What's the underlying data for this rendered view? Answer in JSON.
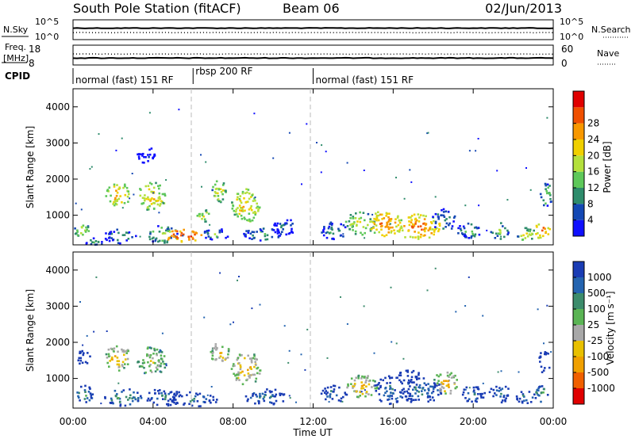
{
  "header": {
    "title": "South Pole Station (fitACF)",
    "beam": "Beam 06",
    "date": "02/Jun/2013"
  },
  "chart_data": [
    {
      "type": "line",
      "panel": "nsky-nsearch",
      "ylabel_left": "N.Sky",
      "ylabel_right": "N.Search",
      "ylim": [
        1,
        100000
      ],
      "log_scale": true,
      "ticks_left": [
        "10^5",
        "10^0"
      ],
      "ticks_right": [
        "10^5",
        "10^0"
      ],
      "series": [
        {
          "name": "N.Sky",
          "style": "solid",
          "values_mean": 800
        },
        {
          "name": "N.Search",
          "style": "dotted",
          "values_mean": 60
        }
      ]
    },
    {
      "type": "line",
      "panel": "freq-nave",
      "ylabel_left": "Freq.\n[MHz]",
      "ylabel_right": "Nave",
      "ylim_left": [
        8,
        18
      ],
      "ylim_right": [
        0,
        60
      ],
      "ticks_left": [
        "18",
        "8"
      ],
      "ticks_right": [
        "60",
        "0"
      ],
      "series": [
        {
          "name": "Freq.",
          "style": "solid",
          "values_mean": 11.5
        },
        {
          "name": "Nave",
          "style": "dotted",
          "values_mean": 33
        }
      ]
    },
    {
      "type": "table",
      "panel": "cpid",
      "label": "CPID",
      "segments": [
        {
          "label": "normal (fast) 151 RF",
          "start": 0,
          "end": 6
        },
        {
          "label": "rbsp 200 RF",
          "start": 6,
          "end": 12
        },
        {
          "label": "normal (fast) 151 RF",
          "start": 12,
          "end": 24
        }
      ]
    },
    {
      "type": "heatmap",
      "panel": "power",
      "ylabel": "Slant Range [km]",
      "xlim": [
        0,
        24
      ],
      "ylim": [
        180,
        4500
      ],
      "yticks": [
        "1000",
        "2000",
        "3000",
        "4000"
      ],
      "colorbar": {
        "label": "Power [dB]",
        "ticks": [
          "4",
          "8",
          "12",
          "16",
          "20",
          "24",
          "28"
        ],
        "colors": [
          "#1010ff",
          "#1448b4",
          "#2e8c6c",
          "#5ec85a",
          "#b4e03c",
          "#f0d000",
          "#f89800",
          "#f05000",
          "#e00000"
        ]
      },
      "blobs": [
        {
          "t": 0.4,
          "r": 600,
          "dt": 0.5,
          "dr": 250,
          "level": 5
        },
        {
          "t": 1.0,
          "r": 300,
          "dt": 0.8,
          "dr": 120,
          "level": 3
        },
        {
          "t": 2.2,
          "r": 1600,
          "dt": 0.8,
          "dr": 450,
          "level": 6
        },
        {
          "t": 2.3,
          "r": 450,
          "dt": 1.0,
          "dr": 250,
          "level": 3
        },
        {
          "t": 3.9,
          "r": 1550,
          "dt": 0.9,
          "dr": 500,
          "level": 6
        },
        {
          "t": 3.6,
          "r": 2700,
          "dt": 0.6,
          "dr": 300,
          "level": 1
        },
        {
          "t": 4.4,
          "r": 500,
          "dt": 1.0,
          "dr": 300,
          "level": 4
        },
        {
          "t": 5.5,
          "r": 450,
          "dt": 1.2,
          "dr": 250,
          "level": 8
        },
        {
          "t": 6.5,
          "r": 1000,
          "dt": 0.5,
          "dr": 250,
          "level": 5
        },
        {
          "t": 7.3,
          "r": 1700,
          "dt": 0.5,
          "dr": 400,
          "level": 5
        },
        {
          "t": 7.1,
          "r": 500,
          "dt": 0.8,
          "dr": 200,
          "level": 3
        },
        {
          "t": 8.6,
          "r": 1300,
          "dt": 0.9,
          "dr": 600,
          "level": 6
        },
        {
          "t": 9.4,
          "r": 500,
          "dt": 1.2,
          "dr": 250,
          "level": 3
        },
        {
          "t": 10.5,
          "r": 700,
          "dt": 0.8,
          "dr": 300,
          "level": 2
        },
        {
          "t": 13.0,
          "r": 600,
          "dt": 0.8,
          "dr": 300,
          "level": 3
        },
        {
          "t": 14.3,
          "r": 800,
          "dt": 0.9,
          "dr": 400,
          "level": 5
        },
        {
          "t": 15.6,
          "r": 800,
          "dt": 1.0,
          "dr": 500,
          "level": 7
        },
        {
          "t": 17.2,
          "r": 700,
          "dt": 1.4,
          "dr": 450,
          "level": 7
        },
        {
          "t": 18.5,
          "r": 900,
          "dt": 0.8,
          "dr": 400,
          "level": 3
        },
        {
          "t": 19.8,
          "r": 600,
          "dt": 0.8,
          "dr": 300,
          "level": 3
        },
        {
          "t": 21.3,
          "r": 600,
          "dt": 0.6,
          "dr": 300,
          "level": 4
        },
        {
          "t": 22.6,
          "r": 500,
          "dt": 0.6,
          "dr": 250,
          "level": 5
        },
        {
          "t": 23.4,
          "r": 600,
          "dt": 0.5,
          "dr": 300,
          "level": 7
        },
        {
          "t": 23.6,
          "r": 1600,
          "dt": 0.4,
          "dr": 400,
          "level": 4
        }
      ]
    },
    {
      "type": "heatmap",
      "panel": "velocity",
      "ylabel": "Slant Range [km]",
      "xlabel": "Time UT",
      "xlim": [
        0,
        24
      ],
      "ylim": [
        180,
        4500
      ],
      "xticks": [
        "00:00",
        "04:00",
        "08:00",
        "12:00",
        "16:00",
        "20:00",
        "00:00"
      ],
      "yticks": [
        "1000",
        "2000",
        "3000",
        "4000"
      ],
      "colorbar": {
        "label": "Velocity [m s^-1]",
        "ticks": [
          "1000",
          "500",
          "100",
          "25",
          "-25",
          "-100",
          "-500",
          "-1000"
        ],
        "colors": [
          "#1a3cb4",
          "#2464b0",
          "#3c8c6c",
          "#5ab454",
          "#a8a8a8",
          "#e8c000",
          "#f0a000",
          "#f06000",
          "#e00000"
        ]
      },
      "blobs": [
        {
          "t": 0.5,
          "r": 600,
          "dt": 0.6,
          "dr": 300,
          "level": 3
        },
        {
          "t": 0.5,
          "r": 1600,
          "dt": 0.4,
          "dr": 300,
          "level": 1
        },
        {
          "t": 2.2,
          "r": 1600,
          "dt": 0.8,
          "dr": 450,
          "level": 6
        },
        {
          "t": 2.5,
          "r": 500,
          "dt": 1.2,
          "dr": 300,
          "level": 3
        },
        {
          "t": 3.9,
          "r": 1500,
          "dt": 0.9,
          "dr": 500,
          "level": 5
        },
        {
          "t": 4.5,
          "r": 500,
          "dt": 1.2,
          "dr": 300,
          "level": 2
        },
        {
          "t": 6.0,
          "r": 450,
          "dt": 1.5,
          "dr": 250,
          "level": 2
        },
        {
          "t": 7.3,
          "r": 1700,
          "dt": 0.6,
          "dr": 400,
          "level": 6
        },
        {
          "t": 8.6,
          "r": 1300,
          "dt": 0.9,
          "dr": 600,
          "level": 6
        },
        {
          "t": 9.6,
          "r": 500,
          "dt": 1.3,
          "dr": 300,
          "level": 2
        },
        {
          "t": 13.0,
          "r": 600,
          "dt": 0.8,
          "dr": 300,
          "level": 2
        },
        {
          "t": 14.4,
          "r": 800,
          "dt": 1.0,
          "dr": 400,
          "level": 6
        },
        {
          "t": 15.8,
          "r": 700,
          "dt": 1.0,
          "dr": 500,
          "level": 2
        },
        {
          "t": 17.3,
          "r": 700,
          "dt": 1.4,
          "dr": 450,
          "level": 2
        },
        {
          "t": 16.8,
          "r": 1100,
          "dt": 0.8,
          "dr": 250,
          "level": 0
        },
        {
          "t": 18.6,
          "r": 900,
          "dt": 0.8,
          "dr": 400,
          "level": 6
        },
        {
          "t": 19.9,
          "r": 600,
          "dt": 0.8,
          "dr": 300,
          "level": 2
        },
        {
          "t": 21.3,
          "r": 600,
          "dt": 0.7,
          "dr": 300,
          "level": 2
        },
        {
          "t": 22.6,
          "r": 500,
          "dt": 0.6,
          "dr": 250,
          "level": 2
        },
        {
          "t": 23.5,
          "r": 1500,
          "dt": 0.4,
          "dr": 400,
          "level": 0
        },
        {
          "t": 23.4,
          "r": 600,
          "dt": 0.5,
          "dr": 300,
          "level": 3
        }
      ]
    }
  ]
}
